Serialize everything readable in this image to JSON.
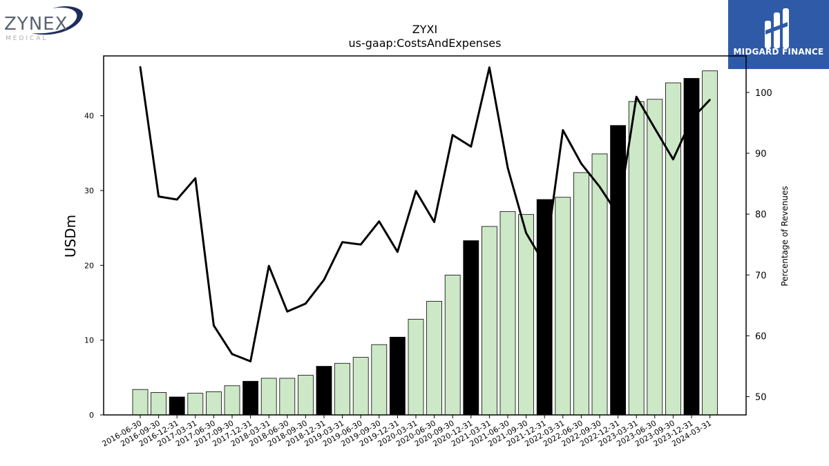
{
  "branding": {
    "left_logo": {
      "name": "ZYNEX",
      "subtitle": "MEDICAL"
    },
    "right_logo": {
      "name": "MIDGARD FINANCE"
    }
  },
  "chart_data": {
    "type": "bar",
    "title": "ZYXI",
    "subtitle": "us-gaap:CostsAndExpenses",
    "ylabel": "USDm",
    "y2label": "Percentage of Revenues",
    "ylim": [
      0,
      48
    ],
    "y2lim": [
      47,
      106
    ],
    "yticks": [
      0,
      10,
      20,
      30,
      40
    ],
    "y2ticks": [
      50,
      60,
      70,
      80,
      90,
      100
    ],
    "colors": {
      "quarter": "#cce8c6",
      "year_end": "#000000",
      "edge": "#000000",
      "line": "#000000"
    },
    "categories": [
      "2016-06-30",
      "2016-09-30",
      "2016-12-31",
      "2017-03-31",
      "2017-06-30",
      "2017-09-30",
      "2017-12-31",
      "2018-03-31",
      "2018-06-30",
      "2018-09-30",
      "2018-12-31",
      "2019-03-31",
      "2019-06-30",
      "2019-09-30",
      "2019-12-31",
      "2020-03-31",
      "2020-06-30",
      "2020-09-30",
      "2020-12-31",
      "2021-03-31",
      "2021-06-30",
      "2021-09-30",
      "2021-12-31",
      "2022-03-31",
      "2022-06-30",
      "2022-09-30",
      "2022-12-31",
      "2023-03-31",
      "2023-06-30",
      "2023-09-30",
      "2023-12-31",
      "2024-03-31"
    ],
    "series": [
      {
        "kind": "bar",
        "axis": "left",
        "values": [
          3.4,
          3.0,
          2.4,
          2.9,
          3.1,
          3.9,
          4.5,
          4.9,
          4.9,
          5.3,
          6.5,
          6.9,
          7.7,
          9.4,
          10.4,
          12.8,
          15.2,
          18.7,
          23.3,
          25.2,
          27.2,
          26.8,
          28.8,
          29.1,
          32.4,
          34.9,
          38.7,
          41.9,
          42.2,
          44.4,
          45.0,
          46.0
        ],
        "year_end": [
          false,
          false,
          true,
          false,
          false,
          false,
          true,
          false,
          false,
          false,
          true,
          false,
          false,
          false,
          true,
          false,
          false,
          false,
          true,
          false,
          false,
          false,
          true,
          false,
          false,
          false,
          true,
          false,
          false,
          false,
          true,
          false
        ]
      },
      {
        "kind": "line",
        "axis": "right",
        "values": [
          104.2,
          82.9,
          82.4,
          85.9,
          61.7,
          57.0,
          55.8,
          71.5,
          64.0,
          65.3,
          69.2,
          75.4,
          75.0,
          78.8,
          73.8,
          83.8,
          78.7,
          93.0,
          91.1,
          104.1,
          87.6,
          76.9,
          71.8,
          93.8,
          88.3,
          84.5,
          79.9,
          99.3,
          94.1,
          89.0,
          95.6,
          98.8
        ]
      }
    ]
  }
}
